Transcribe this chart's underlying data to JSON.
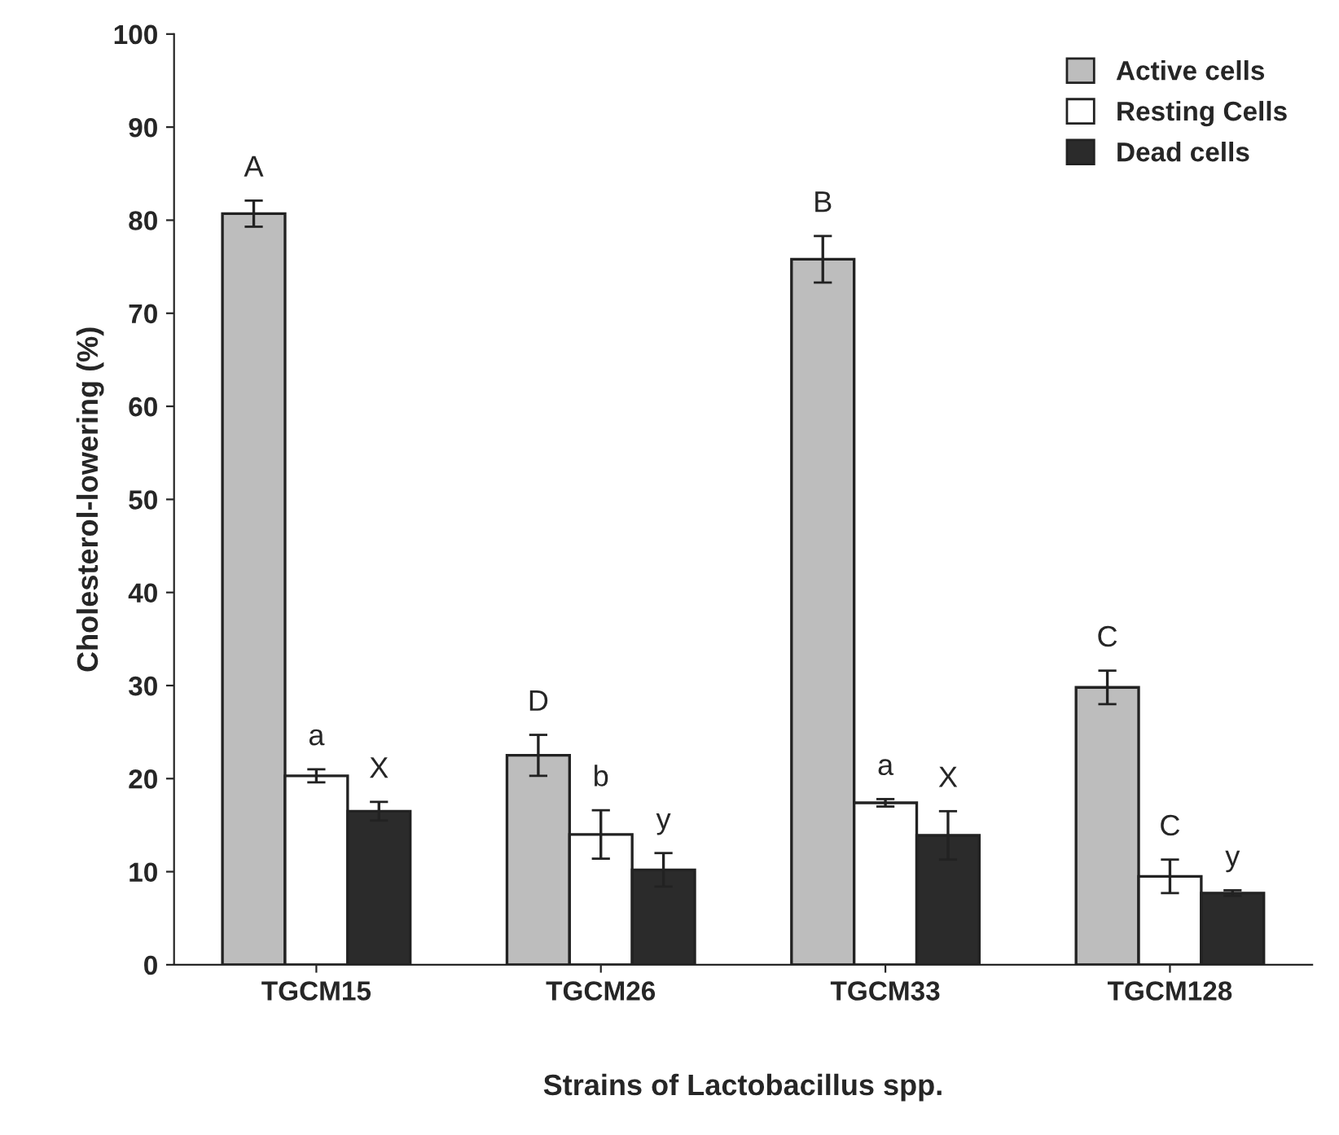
{
  "chart_data": {
    "type": "bar",
    "xlabel": "Strains of Lactobacillus spp.",
    "ylabel": "Cholesterol-lowering (%)",
    "categories": [
      "TGCM15",
      "TGCM26",
      "TGCM33",
      "TGCM128"
    ],
    "series": [
      {
        "name": "Active cells",
        "color": "#bdbdbd",
        "values": [
          80.7,
          22.5,
          75.8,
          29.8
        ],
        "errors": [
          1.4,
          2.2,
          2.5,
          1.8
        ],
        "value_labels": [
          "A",
          "D",
          "B",
          "C"
        ]
      },
      {
        "name": "Resting Cells",
        "color": "#ffffff",
        "values": [
          20.3,
          14.0,
          17.4,
          9.5
        ],
        "errors": [
          0.7,
          2.6,
          0.4,
          1.8
        ],
        "value_labels": [
          "a",
          "b",
          "a",
          "C"
        ]
      },
      {
        "name": "Dead cells",
        "color": "#2b2b2b",
        "values": [
          16.5,
          10.2,
          13.9,
          7.7
        ],
        "errors": [
          1.0,
          1.8,
          2.6,
          0.3
        ],
        "value_labels": [
          "X",
          "y",
          "X",
          "y"
        ]
      }
    ],
    "ylim": [
      0,
      100
    ],
    "yticks": [
      0,
      10,
      20,
      30,
      40,
      50,
      60,
      70,
      80,
      90,
      100
    ],
    "grid": false,
    "legend": "top right"
  }
}
